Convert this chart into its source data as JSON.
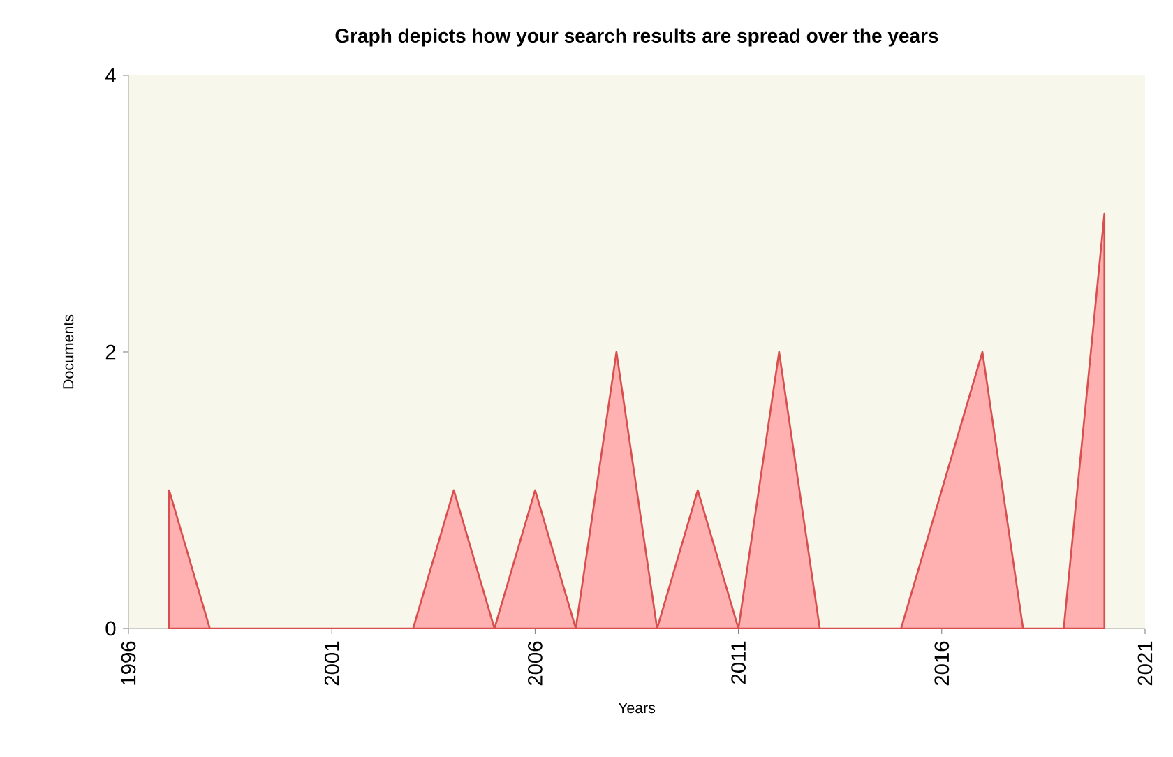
{
  "chart_data": {
    "type": "area",
    "title": "Graph depicts how your search results are spread over the years",
    "xlabel": "Years",
    "ylabel": "Documents",
    "x": [
      1997,
      1998,
      1999,
      2000,
      2001,
      2002,
      2003,
      2004,
      2005,
      2006,
      2007,
      2008,
      2009,
      2010,
      2011,
      2012,
      2013,
      2014,
      2015,
      2016,
      2017,
      2018,
      2019,
      2020
    ],
    "series": [
      {
        "color": "#ffb0b0",
        "values": [
          1,
          0,
          0,
          0,
          0,
          0,
          0,
          1,
          0,
          1,
          0,
          2,
          0,
          1,
          0,
          2,
          0,
          0,
          0,
          1,
          2,
          0,
          0,
          3
        ]
      }
    ],
    "xlim": [
      1996,
      2021
    ],
    "xticks": [
      1996,
      2001,
      2006,
      2011,
      2016,
      2021
    ],
    "ylim": [
      0,
      4
    ],
    "yticks": [
      0,
      2,
      4
    ],
    "grid": false
  }
}
